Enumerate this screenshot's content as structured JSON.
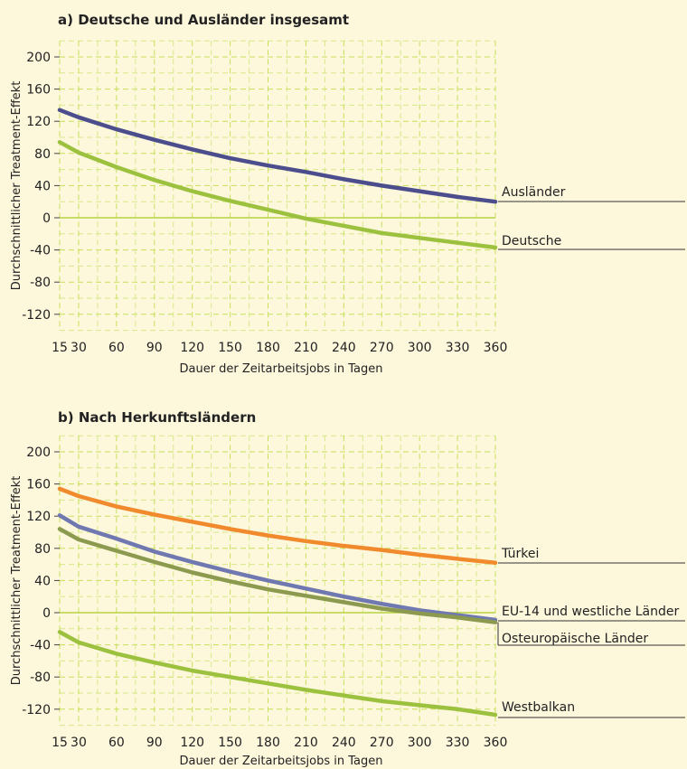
{
  "chart_data": [
    {
      "type": "line",
      "title": "a) Deutsche und Ausländer insgesamt",
      "xlabel": "Dauer der Zeitarbeitsjobs in Tagen",
      "ylabel": "Durchschnittlicher Treatment-Effekt",
      "xlim": [
        15,
        360
      ],
      "ylim": [
        -140,
        220
      ],
      "x_ticks": [
        15,
        30,
        60,
        90,
        120,
        150,
        180,
        210,
        240,
        270,
        300,
        330,
        360
      ],
      "y_ticks": [
        200,
        160,
        120,
        80,
        40,
        0,
        -40,
        -80,
        -120
      ],
      "grid": true,
      "x": [
        15,
        30,
        60,
        90,
        120,
        150,
        180,
        210,
        240,
        270,
        300,
        330,
        360
      ],
      "series": [
        {
          "name": "Ausländer",
          "color": "#4b4d8c",
          "values": [
            134,
            125,
            110,
            97,
            85,
            74,
            65,
            57,
            48,
            40,
            33,
            26,
            20
          ]
        },
        {
          "name": "Deutsche",
          "color": "#9cc13f",
          "values": [
            94,
            81,
            63,
            47,
            33,
            21,
            10,
            -1,
            -10,
            -19,
            -25,
            -31,
            -37
          ]
        }
      ]
    },
    {
      "type": "line",
      "title": "b) Nach Herkunftsländern",
      "xlabel": "Dauer der Zeitarbeitsjobs in Tagen",
      "ylabel": "Durchschnittlicher Treatment-Effekt",
      "xlim": [
        15,
        360
      ],
      "ylim": [
        -140,
        220
      ],
      "x_ticks": [
        15,
        30,
        60,
        90,
        120,
        150,
        180,
        210,
        240,
        270,
        300,
        330,
        360
      ],
      "y_ticks": [
        200,
        160,
        120,
        80,
        40,
        0,
        -40,
        -80,
        -120
      ],
      "grid": true,
      "x": [
        15,
        30,
        60,
        90,
        120,
        150,
        180,
        210,
        240,
        270,
        300,
        330,
        360
      ],
      "series": [
        {
          "name": "Türkei",
          "color": "#f08a2c",
          "values": [
            154,
            145,
            132,
            122,
            113,
            104,
            96,
            89,
            83,
            78,
            72,
            67,
            62
          ]
        },
        {
          "name": "EU-14 und westliche Länder",
          "color": "#6f78b0",
          "values": [
            121,
            107,
            92,
            76,
            63,
            51,
            40,
            30,
            20,
            11,
            3,
            -3,
            -9
          ]
        },
        {
          "name": "Osteuropäische Länder",
          "color": "#8b9a4f",
          "values": [
            104,
            91,
            77,
            63,
            50,
            39,
            29,
            21,
            13,
            5,
            -1,
            -6,
            -12
          ]
        },
        {
          "name": "Westbalkan",
          "color": "#9cc13f",
          "values": [
            -24,
            -37,
            -51,
            -62,
            -72,
            -80,
            -88,
            -96,
            -103,
            -110,
            -115,
            -120,
            -127
          ]
        }
      ]
    }
  ]
}
